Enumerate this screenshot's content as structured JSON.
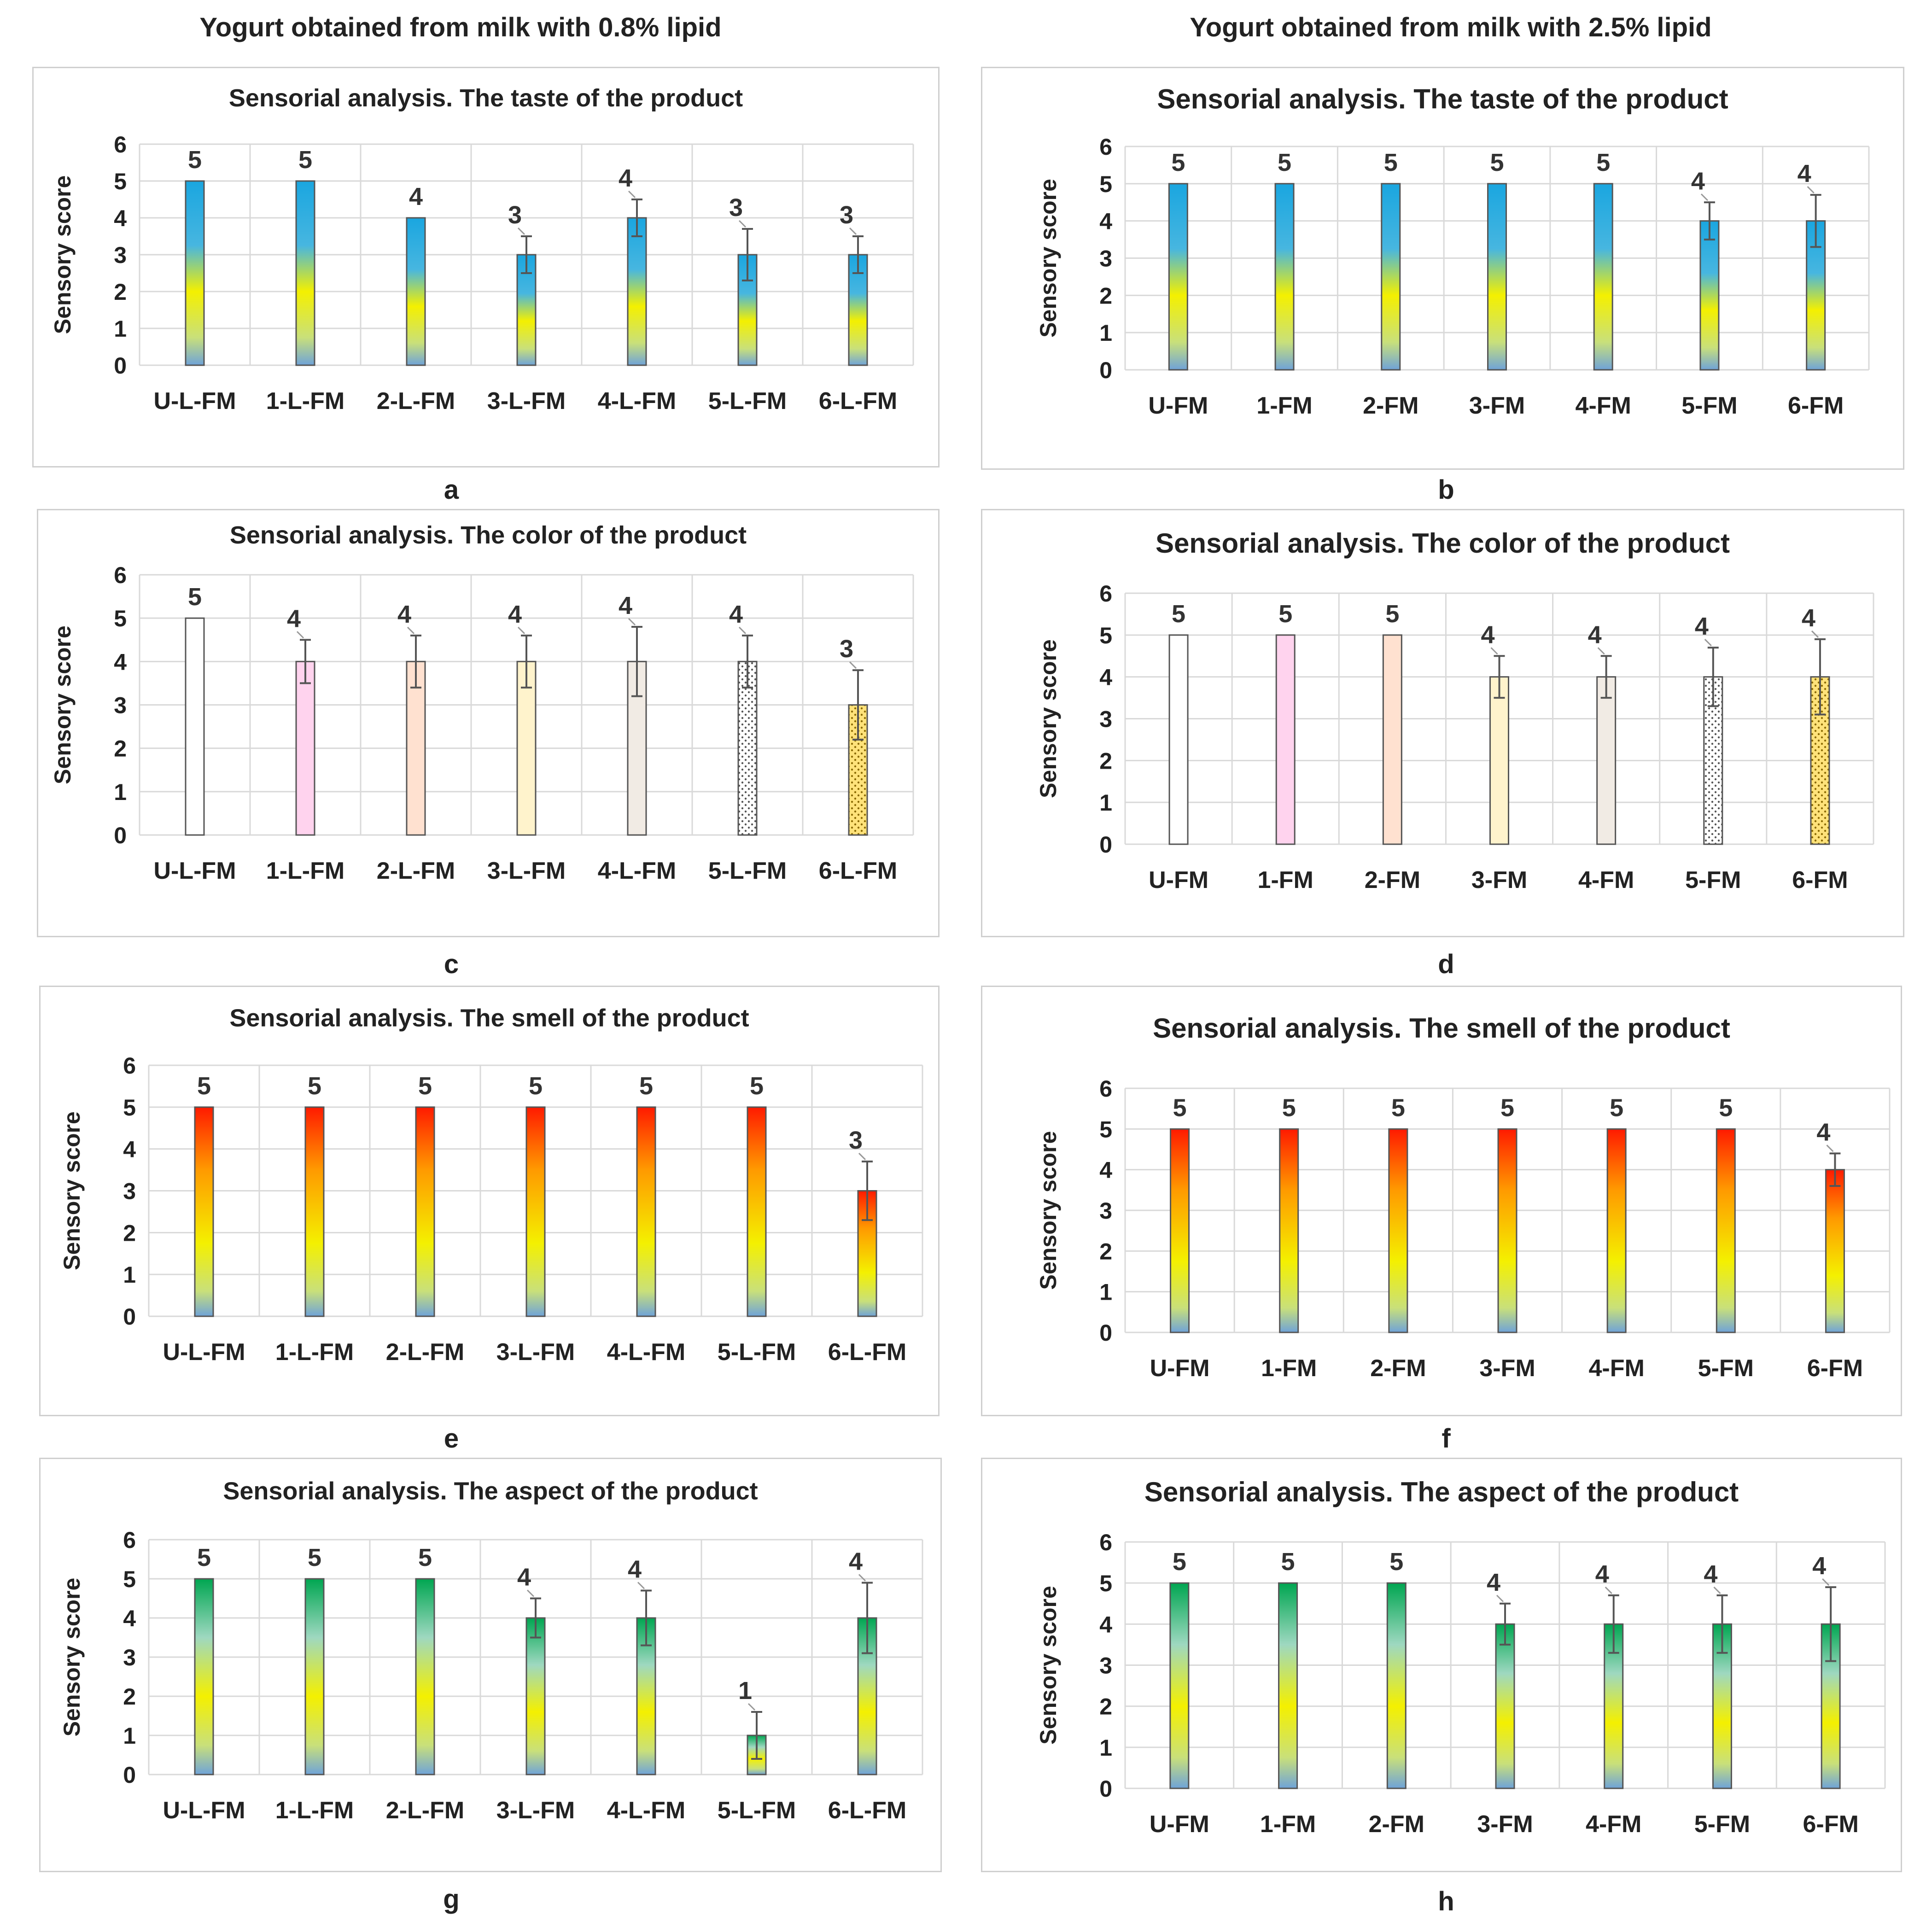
{
  "column_titles": {
    "left": "Yogurt obtained from milk with 0.8% lipid",
    "right": "Yogurt obtained from milk with 2.5% lipid"
  },
  "y_axis_label": "Sensory score",
  "colors": {
    "blue_top": "#1aa6e0",
    "yellow_mid": "#f4f000",
    "base_blue": "#6fa3d8",
    "red_top": "#ff1a00",
    "orange_mid": "#ff9a00",
    "green_top": "#00a651",
    "grid": "#d9d9d9",
    "error_bar": "#555555"
  },
  "chart_data": [
    {
      "letter": "a",
      "type": "bar",
      "title": "Sensorial analysis.  The taste of the product",
      "ylabel": "Sensory score",
      "ylim": [
        0,
        6
      ],
      "style": "taste",
      "categories": [
        "U-L-FM",
        "1-L-FM",
        "2-L-FM",
        "3-L-FM",
        "4-L-FM",
        "5-L-FM",
        "6-L-FM"
      ],
      "values": [
        5,
        5,
        4,
        3,
        4,
        3,
        3
      ],
      "errors": [
        0,
        0,
        0,
        0.5,
        0.5,
        0.7,
        0.5
      ]
    },
    {
      "letter": "b",
      "type": "bar",
      "title": "Sensorial analysis. The taste of the product",
      "ylabel": "Sensory score",
      "ylim": [
        0,
        6
      ],
      "style": "taste",
      "categories": [
        "U-FM",
        "1-FM",
        "2-FM",
        "3-FM",
        "4-FM",
        "5-FM",
        "6-FM"
      ],
      "values": [
        5,
        5,
        5,
        5,
        5,
        4,
        4
      ],
      "errors": [
        0,
        0,
        0,
        0,
        0,
        0.5,
        0.7
      ]
    },
    {
      "letter": "c",
      "type": "bar",
      "title": "Sensorial analysis.  The color of the product",
      "ylabel": "Sensory score",
      "ylim": [
        0,
        6
      ],
      "style": "color",
      "categories": [
        "U-L-FM",
        "1-L-FM",
        "2-L-FM",
        "3-L-FM",
        "4-L-FM",
        "5-L-FM",
        "6-L-FM"
      ],
      "values": [
        5,
        4,
        4,
        4,
        4,
        4,
        3
      ],
      "errors": [
        0,
        0.5,
        0.6,
        0.6,
        0.8,
        0.6,
        0.8
      ],
      "bar_fills": [
        "#ffffff",
        "#ffd3ee",
        "#ffe1d0",
        "#fff3cc",
        "#f1ebe4",
        "dots-gray",
        "dots-yellow"
      ]
    },
    {
      "letter": "d",
      "type": "bar",
      "title": "Sensorial analysis. The color of the product",
      "ylabel": "Sensory score",
      "ylim": [
        0,
        6
      ],
      "style": "color",
      "categories": [
        "U-FM",
        "1-FM",
        "2-FM",
        "3-FM",
        "4-FM",
        "5-FM",
        "6-FM"
      ],
      "values": [
        5,
        5,
        5,
        4,
        4,
        4,
        4
      ],
      "errors": [
        0,
        0,
        0,
        0.5,
        0.5,
        0.7,
        0.9
      ],
      "bar_fills": [
        "#ffffff",
        "#ffd3ee",
        "#ffe1d0",
        "#fff3cc",
        "#f1ebe4",
        "dots-gray",
        "dots-yellow"
      ]
    },
    {
      "letter": "e",
      "type": "bar",
      "title": "Sensorial analysis.  The smell of the product",
      "ylabel": "Sensory score",
      "ylim": [
        0,
        6
      ],
      "style": "smell",
      "categories": [
        "U-L-FM",
        "1-L-FM",
        "2-L-FM",
        "3-L-FM",
        "4-L-FM",
        "5-L-FM",
        "6-L-FM"
      ],
      "values": [
        5,
        5,
        5,
        5,
        5,
        5,
        3
      ],
      "errors": [
        0,
        0,
        0,
        0,
        0,
        0,
        0.7
      ]
    },
    {
      "letter": "f",
      "type": "bar",
      "title": "Sensorial analysis. The smell of the product",
      "ylabel": "Sensory score",
      "ylim": [
        0,
        6
      ],
      "style": "smell",
      "categories": [
        "U-FM",
        "1-FM",
        "2-FM",
        "3-FM",
        "4-FM",
        "5-FM",
        "6-FM"
      ],
      "values": [
        5,
        5,
        5,
        5,
        5,
        5,
        4
      ],
      "errors": [
        0,
        0,
        0,
        0,
        0,
        0,
        0.4
      ]
    },
    {
      "letter": "g",
      "type": "bar",
      "title": "Sensorial analysis.  The aspect of the product",
      "ylabel": "Sensory score",
      "ylim": [
        0,
        6
      ],
      "style": "aspect",
      "categories": [
        "U-L-FM",
        "1-L-FM",
        "2-L-FM",
        "3-L-FM",
        "4-L-FM",
        "5-L-FM",
        "6-L-FM"
      ],
      "values": [
        5,
        5,
        5,
        4,
        4,
        1,
        4
      ],
      "errors": [
        0,
        0,
        0,
        0.5,
        0.7,
        0.6,
        0.9
      ]
    },
    {
      "letter": "h",
      "type": "bar",
      "title": "Sensorial analysis. The aspect of the product",
      "ylabel": "Sensory score",
      "ylim": [
        0,
        6
      ],
      "style": "aspect",
      "categories": [
        "U-FM",
        "1-FM",
        "2-FM",
        "3-FM",
        "4-FM",
        "5-FM",
        "6-FM"
      ],
      "values": [
        5,
        5,
        5,
        4,
        4,
        4,
        4
      ],
      "errors": [
        0,
        0,
        0,
        0.5,
        0.7,
        0.7,
        0.9
      ]
    }
  ]
}
